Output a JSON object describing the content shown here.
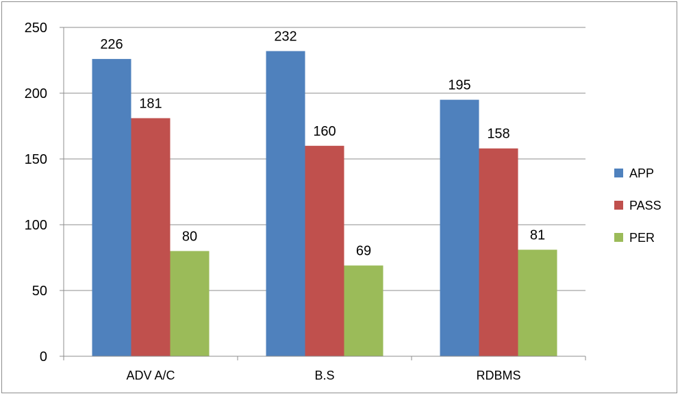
{
  "chart_data": {
    "type": "bar",
    "title": "",
    "xlabel": "",
    "ylabel": "",
    "categories": [
      "ADV A/C",
      "B.S",
      "RDBMS"
    ],
    "series": [
      {
        "name": "APP",
        "values": [
          226,
          232,
          195
        ],
        "color": "#4f81bd"
      },
      {
        "name": "PASS",
        "values": [
          181,
          160,
          158
        ],
        "color": "#c0504d"
      },
      {
        "name": "PER",
        "values": [
          80,
          69,
          81
        ],
        "color": "#9bbb59"
      }
    ],
    "ylim": [
      0,
      250
    ],
    "yticks": [
      0,
      50,
      100,
      150,
      200,
      250
    ],
    "grid": true,
    "legend": "right",
    "data_labels": true
  }
}
